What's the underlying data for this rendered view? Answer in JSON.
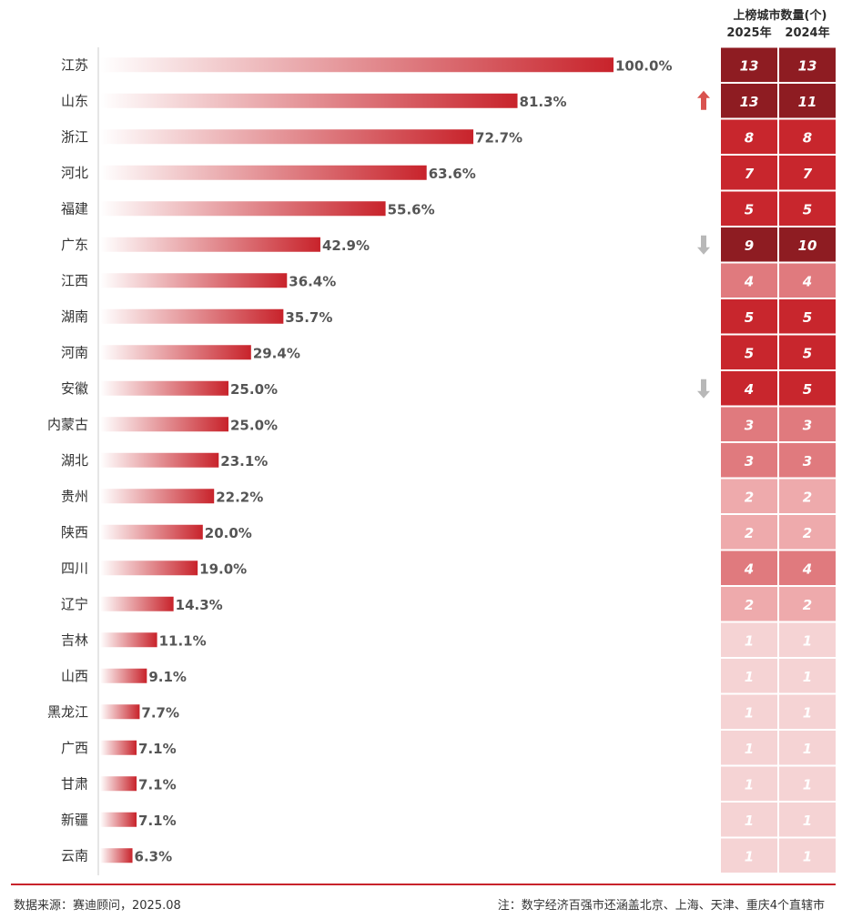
{
  "header": {
    "title": "上榜城市数量(个)",
    "col_2025": "2025年",
    "col_2024": "2024年"
  },
  "footer": {
    "source": "数据来源：赛迪顾问，2025.08",
    "note": "注：数字经济百强市还涵盖北京、上海、天津、重庆4个直辖市"
  },
  "colors": {
    "bar_end": "#c8232b",
    "bar_start": "#ffffff",
    "dark": "#8e1c22",
    "red": "#c8262d",
    "mid": "#e07a7e",
    "light": "#eeaaac",
    "pale": "#f5d3d4",
    "arrow_up": "#d9534f",
    "arrow_down": "#b8b8b8",
    "footer_line": "#c8232b"
  },
  "chart_data": {
    "type": "bar",
    "orientation": "horizontal",
    "xlim": [
      0,
      100
    ],
    "categories": [
      "江苏",
      "山东",
      "浙江",
      "河北",
      "福建",
      "广东",
      "江西",
      "湖南",
      "河南",
      "安徽",
      "内蒙古",
      "湖北",
      "贵州",
      "陕西",
      "四川",
      "辽宁",
      "吉林",
      "山西",
      "黑龙江",
      "广西",
      "甘肃",
      "新疆",
      "云南"
    ],
    "values": [
      100.0,
      81.3,
      72.7,
      63.6,
      55.6,
      42.9,
      36.4,
      35.7,
      29.4,
      25.0,
      25.0,
      23.1,
      22.2,
      20.0,
      19.0,
      14.3,
      11.1,
      9.1,
      7.7,
      7.1,
      7.1,
      7.1,
      6.3
    ],
    "value_labels": [
      "100.0%",
      "81.3%",
      "72.7%",
      "63.6%",
      "55.6%",
      "42.9%",
      "36.4%",
      "35.7%",
      "29.4%",
      "25.0%",
      "25.0%",
      "23.1%",
      "22.2%",
      "20.0%",
      "19.0%",
      "14.3%",
      "11.1%",
      "9.1%",
      "7.7%",
      "7.1%",
      "7.1%",
      "7.1%",
      "6.3%"
    ],
    "table": {
      "cities_2025": [
        13,
        13,
        8,
        7,
        5,
        9,
        4,
        5,
        5,
        4,
        3,
        3,
        2,
        2,
        4,
        2,
        1,
        1,
        1,
        1,
        1,
        1,
        1
      ],
      "cities_2024": [
        13,
        11,
        8,
        7,
        5,
        10,
        4,
        5,
        5,
        5,
        3,
        3,
        2,
        2,
        4,
        2,
        1,
        1,
        1,
        1,
        1,
        1,
        1
      ],
      "cell_shade": [
        "dark",
        "dark",
        "red",
        "red",
        "red",
        "dark",
        "mid",
        "red",
        "red",
        "red",
        "mid",
        "mid",
        "light",
        "light",
        "mid",
        "light",
        "pale",
        "pale",
        "pale",
        "pale",
        "pale",
        "pale",
        "pale"
      ],
      "trend": [
        "",
        "up",
        "",
        "",
        "",
        "down",
        "",
        "",
        "",
        "down",
        "",
        "",
        "",
        "",
        "",
        "",
        "",
        "",
        "",
        "",
        "",
        "",
        ""
      ]
    }
  }
}
